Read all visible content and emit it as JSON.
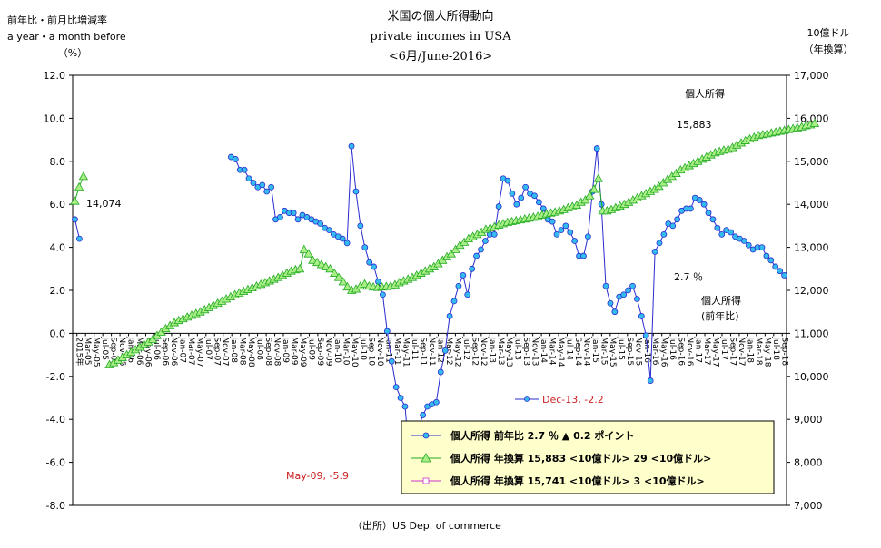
{
  "chart_data": {
    "type": "line",
    "title": "米国の個人所得動向",
    "subtitle": "private incomes in USA",
    "period": "<6月/June-2016>",
    "source": "（出所）US Dep. of commerce",
    "y_left": {
      "label_line1": "前年比・前月比増減率",
      "label_line2": "a year・a month before",
      "label_line3": "（%）",
      "range": [
        -8,
        12
      ],
      "ticks": [
        "12.0",
        "10.0",
        "8.0",
        "6.0",
        "4.0",
        "2.0",
        "0.0",
        "-2.0",
        "-4.0",
        "-6.0",
        "-8.0"
      ]
    },
    "y_right": {
      "label_line1": "10億ドル",
      "label_line2": "（年換算）",
      "range": [
        7000,
        17000
      ],
      "ticks": [
        "17,000",
        "16,000",
        "15,000",
        "14,000",
        "13,000",
        "12,000",
        "11,000",
        "10,000",
        "9,000",
        "8,000",
        "7,000"
      ]
    },
    "x_labels": [
      "2015年",
      "Mar-05",
      "May-05",
      "Jul-05",
      "Sep-05",
      "Nov-05",
      "Jan-06",
      "Mar-06",
      "May-06",
      "Jul-06",
      "Sep-06",
      "Nov-06",
      "Jan-07",
      "Mar-07",
      "May-07",
      "Jul-07",
      "Sep-07",
      "Nov-07",
      "Jan-08",
      "Mar-08",
      "May-08",
      "Jul-08",
      "Sep-08",
      "Nov-08",
      "Jan-09",
      "Mar-09",
      "May-09",
      "Jul-09",
      "Sep-09",
      "Nov-09",
      "Jan-10",
      "Mar-10",
      "May-10",
      "Jul-10",
      "Sep-10",
      "Nov-10",
      "Jan-11",
      "Mar-11",
      "May-11",
      "Jul-11",
      "Sep-11",
      "Nov-11",
      "Jan-12",
      "Mar-12",
      "May-12",
      "Jul-12",
      "Sep-12",
      "Nov-12",
      "Jan-13",
      "Mar-13",
      "May-13",
      "Jul-13",
      "Sep-13",
      "Nov-13",
      "Jan-14",
      "Mar-14",
      "May-14",
      "Jul-14",
      "Sep-14",
      "Nov-14",
      "Jan-15",
      "Mar-15",
      "May-15",
      "Jul-15",
      "Sep-15",
      "Nov-15",
      "Jan-16",
      "Mar-16",
      "May-16",
      "Jul-16",
      "Sep-16",
      "Nov-16",
      "Jan-17",
      "Mar-17",
      "May-17",
      "Jul-17",
      "Sep-17",
      "Nov-17",
      "Jan-18",
      "Mar-18",
      "May-18",
      "Jul-18",
      "Sep-18"
    ],
    "series": [
      {
        "name": "個人所得 前年比",
        "axis": "left",
        "color": "#2b2bcf",
        "marker": "circle",
        "marker_color": "#33bbee",
        "segments": [
          {
            "start": 0,
            "values": [
              5.3,
              4.4
            ]
          },
          {
            "start": 35,
            "values": [
              8.2,
              8.1,
              7.6,
              7.6,
              7.2,
              7.0,
              6.8,
              6.9,
              6.6,
              6.8,
              5.3,
              5.4,
              5.7,
              5.6,
              5.6,
              5.3,
              5.5,
              5.4,
              5.3,
              5.2,
              5.1,
              4.9,
              4.8,
              4.6,
              4.5,
              4.4,
              4.2,
              8.7,
              6.6,
              5.0,
              4.0,
              3.3,
              3.1,
              2.4,
              1.8,
              0.1,
              -1.3,
              -2.5,
              -3.0,
              -3.4,
              -5.9,
              -5.0,
              -4.4,
              -3.8,
              -3.4,
              -3.3,
              -3.2,
              -1.8,
              -0.8,
              0.8,
              1.5,
              2.2,
              2.7,
              1.8,
              3.0,
              3.6,
              3.9,
              4.3,
              4.6,
              4.6,
              5.9,
              7.2,
              7.1,
              6.5,
              6.0,
              6.3,
              6.8,
              6.5,
              6.4,
              6.1,
              5.8,
              5.3,
              5.2,
              4.6,
              4.8,
              5.0,
              4.7,
              4.3,
              3.6,
              3.6,
              4.5,
              6.6,
              8.6,
              6.0,
              2.2,
              1.4,
              1.0,
              1.7,
              1.8,
              2.0,
              2.2,
              1.6,
              0.8,
              -0.1,
              -2.2,
              3.8,
              4.2,
              4.6,
              5.1,
              5.0,
              5.3,
              5.7,
              5.8,
              5.8,
              6.3,
              6.2,
              6.0,
              5.6,
              5.3,
              4.9,
              4.6,
              4.8,
              4.7,
              4.5,
              4.4,
              4.3,
              4.1,
              3.9,
              4.0,
              4.0,
              3.6,
              3.4,
              3.1,
              2.9,
              2.7
            ]
          }
        ]
      },
      {
        "name": "個人所得 年換算",
        "axis": "right",
        "color": "#22aa22",
        "marker": "triangle",
        "marker_color": "#aaee88",
        "segments": [
          {
            "start": 0,
            "values": [
              14074,
              14400,
              14650
            ]
          },
          {
            "start": 8,
            "values": [
              10270,
              10320,
              10380,
              10440,
              10500,
              10560,
              10620,
              10680,
              10740,
              10800,
              10860,
              10950,
              11030,
              11110,
              11180,
              11250,
              11300,
              11340,
              11380,
              11420,
              11460,
              11500,
              11550,
              11600,
              11650,
              11700,
              11750,
              11800,
              11850,
              11900,
              11940,
              11980,
              12020,
              12060,
              12100,
              12140,
              12180,
              12220,
              12260,
              12300,
              12350,
              12400,
              12450,
              12480,
              12500,
              12950,
              12850,
              12700,
              12650,
              12600,
              12550,
              12500,
              12400,
              12300,
              12200,
              12080,
              12000,
              12030,
              12100,
              12150,
              12100,
              12080,
              12070,
              12080,
              12090,
              12100,
              12130,
              12180,
              12220,
              12260,
              12300,
              12350,
              12400,
              12450,
              12500,
              12550,
              12620,
              12700,
              12780,
              12850,
              12950,
              13050,
              13120,
              13200,
              13250,
              13300,
              13350,
              13420,
              13450,
              13480,
              13520,
              13550,
              13580,
              13600,
              13620,
              13640,
              13660,
              13680,
              13700,
              13720,
              13750,
              13780,
              13800,
              13820,
              13850,
              13880,
              13920,
              13950,
              13980,
              14050,
              14100,
              14200,
              14350,
              14600,
              13850,
              13850,
              13880,
              13920,
              13960,
              14000,
              14050,
              14100,
              14150,
              14200,
              14250,
              14300,
              14350,
              14420,
              14500,
              14580,
              14650,
              14720,
              14800,
              14850,
              14900,
              14950,
              15000,
              15050,
              15100,
              15150,
              15200,
              15230,
              15260,
              15280,
              15320,
              15380,
              15430,
              15480,
              15520,
              15560,
              15600,
              15620,
              15640,
              15660,
              15680,
              15700,
              15720,
              15740,
              15760,
              15780,
              15800,
              15830,
              15850,
              15883
            ]
          }
        ]
      }
    ],
    "series_right_len": 242,
    "annotations": {
      "start_yoy": "14,074",
      "end_level": "15,883",
      "end_yoy": "2.7 ％",
      "min_2009": "May-09, -5.9",
      "min_2013": "Dec-13, -2.2",
      "label_level": "個人所得",
      "label_yoy_line1": "個人所得",
      "label_yoy_line2": "(前年比)"
    },
    "legend": {
      "placement": "bottom-right",
      "entries": [
        "個人所得  前年比 2.7  ％   ▲ 0.2 ポイント",
        "個人所得 年換算 15,883 <10億ドル> 29 <10億ドル>",
        "個人所得 年換算 15,741 <10億ドル> 3 <10億ドル>"
      ],
      "colors": [
        "#2b2bcf",
        "#22aa22",
        "#cc33cc"
      ],
      "background": "#ffffcc"
    },
    "grid": false
  }
}
